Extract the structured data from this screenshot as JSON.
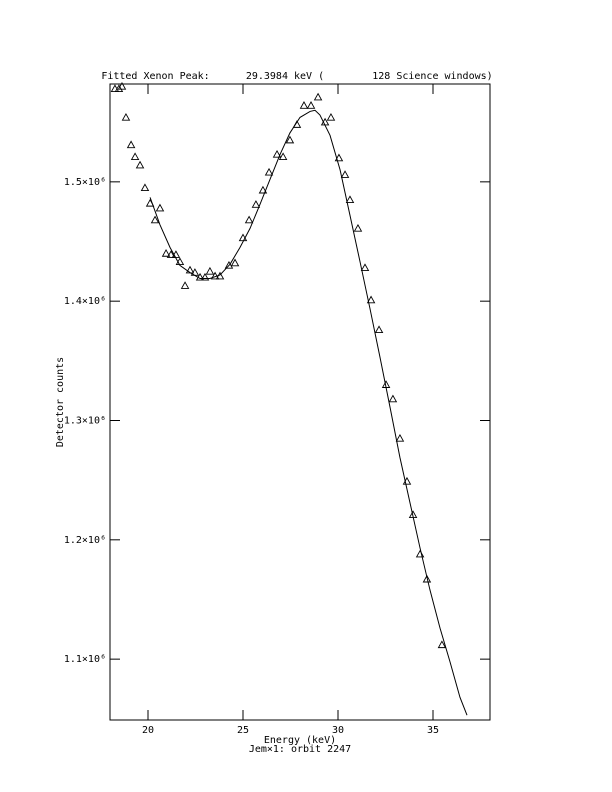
{
  "chart_data": {
    "type": "scatter",
    "title": "Fitted Xenon Peak:      29.3984 keV (        128 Science windows)",
    "x_label": "Energy (keV)",
    "subtitle": "Jem×1: orbit 2247",
    "y_label": "Detector counts",
    "xlim": [
      18,
      38
    ],
    "ylim": [
      1049000,
      1582000
    ],
    "xticks": [
      20,
      25,
      30,
      35
    ],
    "yticks": [
      {
        "value": 1100000,
        "label": "1.1×10⁶"
      },
      {
        "value": 1200000,
        "label": "1.2×10⁶"
      },
      {
        "value": 1300000,
        "label": "1.3×10⁶"
      },
      {
        "value": 1400000,
        "label": "1.4×10⁶"
      },
      {
        "value": 1500000,
        "label": "1.5×10⁶"
      }
    ],
    "series": [
      {
        "type": "scatter",
        "color": "#000000",
        "x": [
          18.26,
          18.47,
          18.63,
          18.84,
          19.11,
          19.32,
          19.58,
          19.84,
          20.11,
          20.37,
          20.63,
          20.95,
          21.21,
          21.47,
          21.68,
          21.95,
          22.21,
          22.47,
          22.74,
          23.0,
          23.26,
          23.53,
          23.79,
          24.26,
          24.58,
          25.0,
          25.32,
          25.68,
          26.05,
          26.37,
          26.79,
          27.11,
          27.47,
          27.84,
          28.21,
          28.58,
          28.95,
          29.32,
          29.63,
          30.05,
          30.37,
          30.63,
          31.05,
          31.42,
          31.74,
          32.16,
          32.53,
          32.89,
          33.26,
          33.63,
          33.95,
          34.32,
          34.68,
          35.47
        ],
        "values": [
          1578000,
          1578000,
          1580000,
          1554000,
          1531000,
          1521000,
          1514000,
          1495000,
          1482000,
          1468000,
          1478000,
          1440000,
          1439000,
          1439000,
          1433000,
          1413000,
          1426000,
          1424000,
          1420000,
          1420000,
          1425000,
          1421000,
          1421000,
          1430000,
          1432000,
          1453000,
          1468000,
          1481000,
          1493000,
          1508000,
          1523000,
          1521000,
          1535000,
          1548000,
          1564000,
          1564000,
          1571000,
          1550000,
          1554000,
          1520000,
          1506000,
          1485000,
          1461000,
          1428000,
          1401000,
          1376000,
          1330000,
          1318000,
          1285000,
          1249000,
          1221000,
          1188000,
          1167000,
          1112000
        ]
      },
      {
        "type": "line",
        "color": "#000000",
        "x": [
          20.11,
          20.63,
          21.16,
          21.68,
          22.21,
          22.74,
          23.26,
          23.79,
          24.32,
          24.84,
          25.37,
          25.89,
          26.42,
          26.95,
          27.47,
          28.0,
          28.53,
          28.79,
          29.05,
          29.58,
          30.11,
          30.63,
          31.16,
          31.68,
          32.21,
          32.74,
          33.26,
          33.79,
          34.32,
          34.84,
          35.37,
          35.89,
          36.42,
          36.79
        ],
        "values": [
          1487000,
          1464000,
          1445000,
          1430000,
          1424000,
          1419000,
          1419000,
          1422000,
          1431000,
          1445000,
          1461000,
          1481000,
          1502000,
          1523000,
          1541000,
          1554000,
          1559000,
          1560000,
          1556000,
          1539000,
          1510000,
          1472000,
          1433000,
          1394000,
          1353000,
          1311000,
          1269000,
          1231000,
          1193000,
          1158000,
          1126000,
          1098000,
          1068000,
          1053000
        ]
      }
    ]
  }
}
